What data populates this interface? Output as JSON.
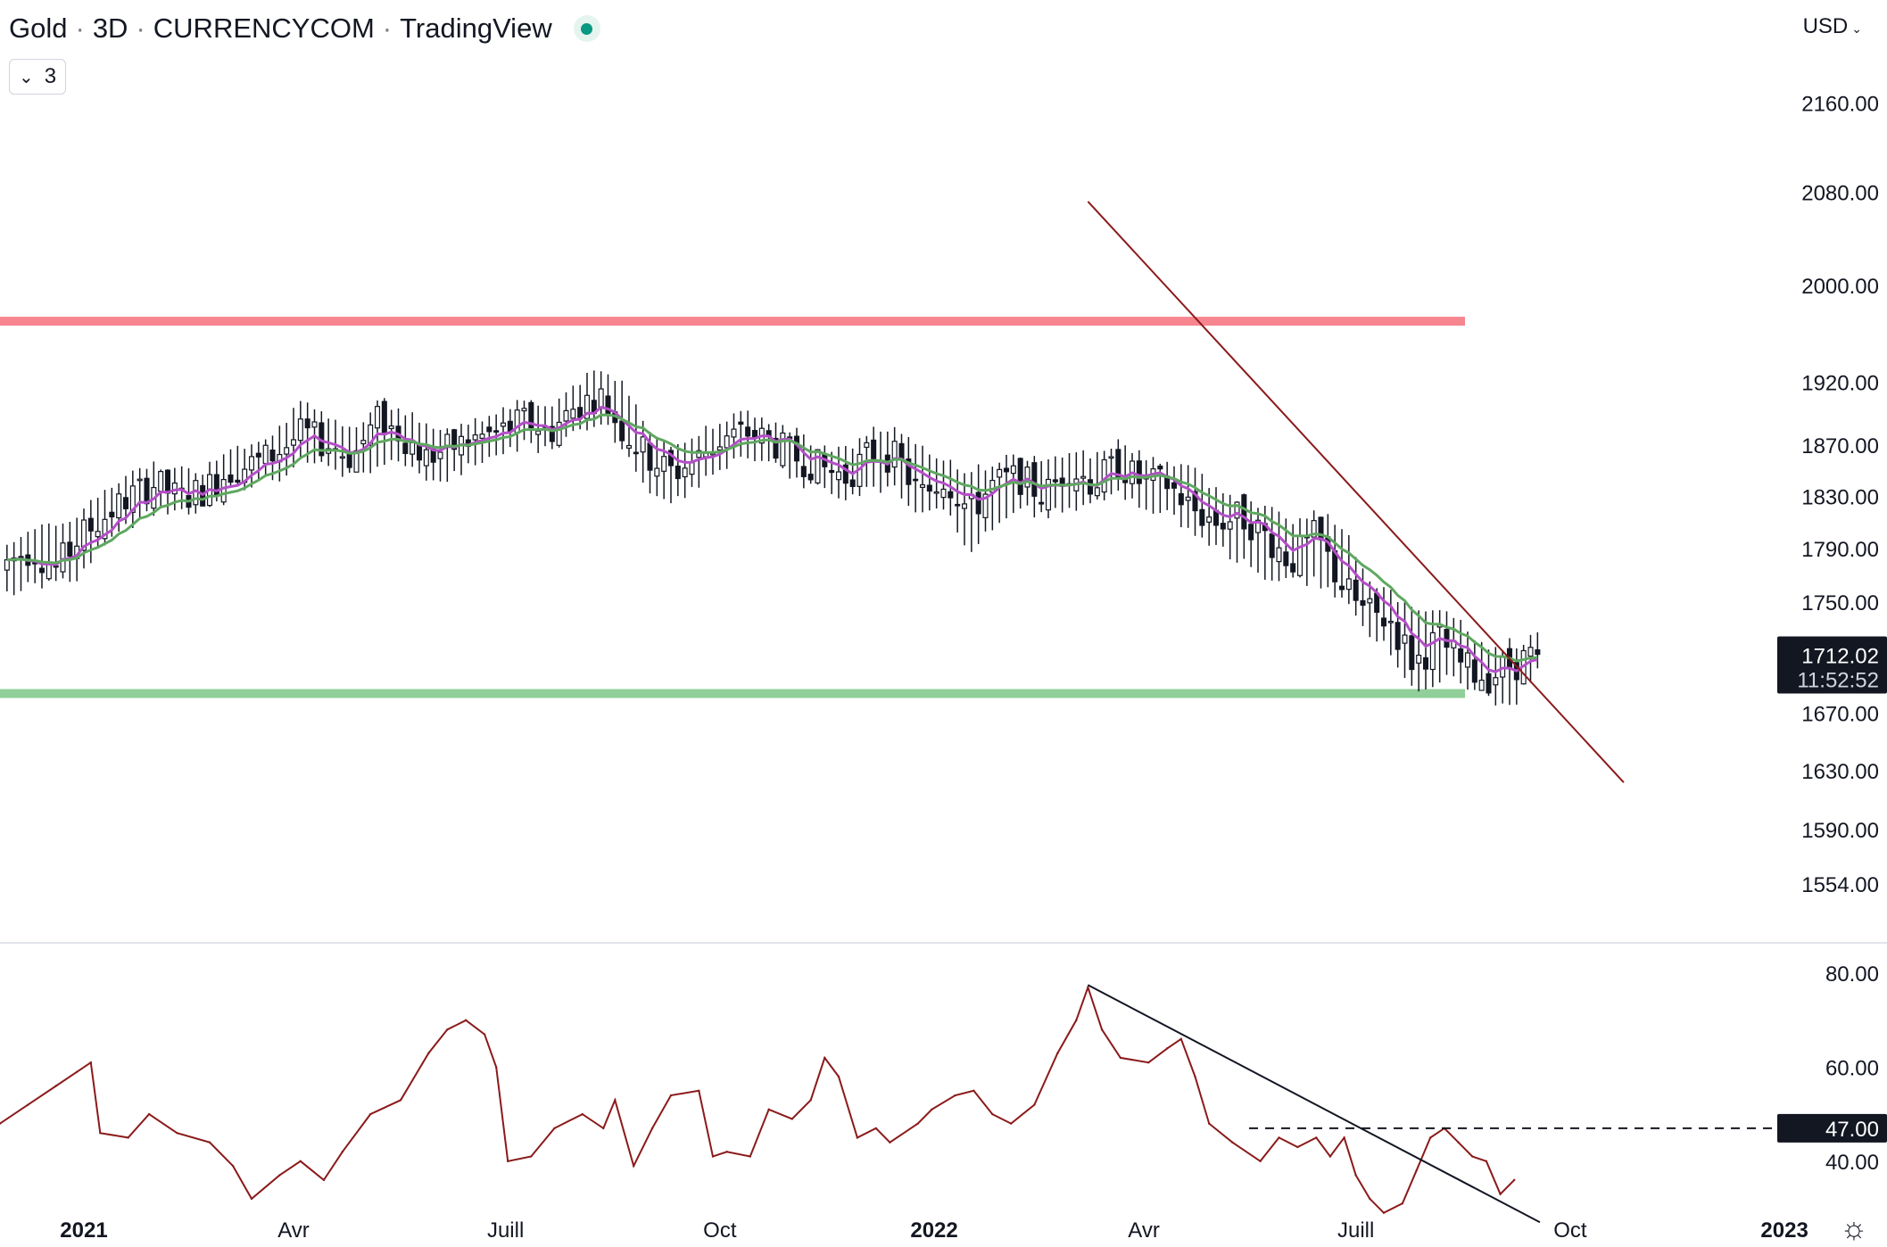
{
  "header": {
    "symbol": "Gold",
    "interval": "3D",
    "exchange": "CURRENCYCOM",
    "source": "TradingView",
    "indicator_count": "3",
    "currency": "USD"
  },
  "price_label": {
    "value": "1712.02",
    "countdown": "11:52:52"
  },
  "rsi_label": {
    "value": "47.00"
  },
  "chart_data": [
    {
      "type": "candlestick",
      "title": "",
      "y_axis_ticks": [
        "2160.00",
        "2080.00",
        "2000.00",
        "1920.00",
        "1870.00",
        "1830.00",
        "1790.00",
        "1750.00",
        "1670.00",
        "1630.00",
        "1590.00",
        "1554.00"
      ],
      "y_tick_values": [
        2160,
        2080,
        2000,
        1920,
        1870,
        1830,
        1790,
        1750,
        1670,
        1630,
        1590,
        1554
      ],
      "x_axis_ticks": [
        {
          "label": "2021",
          "date": "2021-01-01",
          "bold": true
        },
        {
          "label": "Avr",
          "date": "2021-04-01",
          "bold": false
        },
        {
          "label": "Juill",
          "date": "2021-07-01",
          "bold": false
        },
        {
          "label": "Oct",
          "date": "2021-10-01",
          "bold": false
        },
        {
          "label": "2022",
          "date": "2022-01-01",
          "bold": true
        },
        {
          "label": "Avr",
          "date": "2022-04-01",
          "bold": false
        },
        {
          "label": "Juill",
          "date": "2022-07-01",
          "bold": false
        },
        {
          "label": "Oct",
          "date": "2022-10-01",
          "bold": false
        },
        {
          "label": "2023",
          "date": "2023-01-01",
          "bold": true
        }
      ],
      "x_range": [
        "2020-11-26",
        "2023-02-14"
      ],
      "y_scale": "log",
      "last_price": 1712.02,
      "resistance_level": 1970,
      "support_level": 1684,
      "resistance_color": "#f7858f",
      "support_color": "#90cf9a",
      "trendline": {
        "points": [
          {
            "date": "2022-03-08",
            "value": 2072
          },
          {
            "date": "2022-10-24",
            "value": 1622
          }
        ],
        "color": "#8b1a1a"
      },
      "moving_averages": [
        {
          "color": "#b44fc8",
          "period": "short"
        },
        {
          "color": "#5fa860",
          "period": "long"
        }
      ],
      "candle_dates_start": "2020-11-29",
      "candle_step_days": 3,
      "closes": [
        1780,
        1790,
        1775,
        1800,
        1815,
        1830,
        1840,
        1828,
        1835,
        1850,
        1855,
        1865,
        1880,
        1870,
        1860,
        1890,
        1878,
        1860,
        1868,
        1875,
        1880,
        1890,
        1880,
        1900,
        1910,
        1880,
        1860,
        1848,
        1860,
        1875,
        1880,
        1872,
        1860,
        1852,
        1845,
        1865,
        1860,
        1830,
        1845,
        1818,
        1840,
        1845,
        1830,
        1852,
        1840,
        1855,
        1840,
        1840,
        1820,
        1810,
        1815,
        1800,
        1780,
        1800,
        1765,
        1742,
        1738,
        1705,
        1724,
        1702,
        1696,
        1705,
        1712
      ],
      "highs": [
        1792,
        1800,
        1802,
        1815,
        1830,
        1842,
        1852,
        1846,
        1846,
        1865,
        1868,
        1880,
        1900,
        1885,
        1878,
        1900,
        1895,
        1880,
        1880,
        1885,
        1895,
        1902,
        1895,
        1915,
        1925,
        1915,
        1880,
        1862,
        1875,
        1888,
        1890,
        1885,
        1875,
        1865,
        1862,
        1878,
        1878,
        1862,
        1855,
        1845,
        1852,
        1858,
        1850,
        1862,
        1858,
        1868,
        1858,
        1852,
        1848,
        1830,
        1825,
        1818,
        1808,
        1812,
        1806,
        1768,
        1752,
        1744,
        1738,
        1730,
        1710,
        1715,
        1722
      ],
      "lows": [
        1760,
        1768,
        1768,
        1774,
        1800,
        1812,
        1826,
        1822,
        1824,
        1836,
        1845,
        1848,
        1864,
        1860,
        1848,
        1856,
        1862,
        1842,
        1850,
        1860,
        1866,
        1875,
        1868,
        1882,
        1895,
        1870,
        1835,
        1830,
        1842,
        1856,
        1865,
        1860,
        1845,
        1838,
        1832,
        1840,
        1840,
        1818,
        1824,
        1790,
        1812,
        1826,
        1818,
        1826,
        1826,
        1835,
        1826,
        1822,
        1804,
        1796,
        1784,
        1770,
        1770,
        1770,
        1758,
        1732,
        1720,
        1690,
        1698,
        1696,
        1684,
        1680,
        1704
      ]
    },
    {
      "type": "line",
      "title": "",
      "y_axis_ticks": [
        "80.00",
        "60.00",
        "40.00"
      ],
      "y_tick_values": [
        80,
        60,
        40
      ],
      "y_range": [
        28,
        84
      ],
      "x_range": [
        "2020-11-26",
        "2023-02-14"
      ],
      "last_value": 47.0,
      "series_color": "#8b1a1a",
      "reference_level": 47.0,
      "trendline": {
        "points": [
          {
            "date": "2022-03-08",
            "value": 77.5
          },
          {
            "date": "2022-09-18",
            "value": 27
          }
        ],
        "color": "#131722"
      },
      "series": [
        {
          "x": "2020-11-26",
          "y": 48
        },
        {
          "x": "2020-12-08",
          "y": 52
        },
        {
          "x": "2020-12-20",
          "y": 56
        },
        {
          "x": "2020-12-29",
          "y": 59
        },
        {
          "x": "2021-01-04",
          "y": 61
        },
        {
          "x": "2021-01-08",
          "y": 46
        },
        {
          "x": "2021-01-20",
          "y": 45
        },
        {
          "x": "2021-01-29",
          "y": 50
        },
        {
          "x": "2021-02-10",
          "y": 46
        },
        {
          "x": "2021-02-24",
          "y": 44
        },
        {
          "x": "2021-03-06",
          "y": 39
        },
        {
          "x": "2021-03-14",
          "y": 32
        },
        {
          "x": "2021-03-26",
          "y": 37
        },
        {
          "x": "2021-04-04",
          "y": 40
        },
        {
          "x": "2021-04-14",
          "y": 36
        },
        {
          "x": "2021-04-22",
          "y": 42
        },
        {
          "x": "2021-05-04",
          "y": 50
        },
        {
          "x": "2021-05-17",
          "y": 53
        },
        {
          "x": "2021-05-29",
          "y": 63
        },
        {
          "x": "2021-06-06",
          "y": 68
        },
        {
          "x": "2021-06-14",
          "y": 70
        },
        {
          "x": "2021-06-22",
          "y": 67
        },
        {
          "x": "2021-06-27",
          "y": 60
        },
        {
          "x": "2021-07-02",
          "y": 40
        },
        {
          "x": "2021-07-12",
          "y": 41
        },
        {
          "x": "2021-07-22",
          "y": 47
        },
        {
          "x": "2021-08-03",
          "y": 50
        },
        {
          "x": "2021-08-12",
          "y": 47
        },
        {
          "x": "2021-08-17",
          "y": 53
        },
        {
          "x": "2021-08-25",
          "y": 39
        },
        {
          "x": "2021-09-02",
          "y": 47
        },
        {
          "x": "2021-09-10",
          "y": 54
        },
        {
          "x": "2021-09-22",
          "y": 55
        },
        {
          "x": "2021-09-28",
          "y": 41
        },
        {
          "x": "2021-10-04",
          "y": 42
        },
        {
          "x": "2021-10-14",
          "y": 41
        },
        {
          "x": "2021-10-22",
          "y": 51
        },
        {
          "x": "2021-11-01",
          "y": 49
        },
        {
          "x": "2021-11-09",
          "y": 53
        },
        {
          "x": "2021-11-15",
          "y": 62
        },
        {
          "x": "2021-11-21",
          "y": 58
        },
        {
          "x": "2021-11-29",
          "y": 45
        },
        {
          "x": "2021-12-07",
          "y": 47
        },
        {
          "x": "2021-12-13",
          "y": 44
        },
        {
          "x": "2021-12-25",
          "y": 48
        },
        {
          "x": "2021-12-31",
          "y": 51
        },
        {
          "x": "2022-01-10",
          "y": 54
        },
        {
          "x": "2022-01-18",
          "y": 55
        },
        {
          "x": "2022-01-26",
          "y": 50
        },
        {
          "x": "2022-02-03",
          "y": 48
        },
        {
          "x": "2022-02-13",
          "y": 52
        },
        {
          "x": "2022-02-23",
          "y": 63
        },
        {
          "x": "2022-03-03",
          "y": 70
        },
        {
          "x": "2022-03-08",
          "y": 77
        },
        {
          "x": "2022-03-14",
          "y": 68
        },
        {
          "x": "2022-03-22",
          "y": 62
        },
        {
          "x": "2022-04-03",
          "y": 61
        },
        {
          "x": "2022-04-11",
          "y": 64
        },
        {
          "x": "2022-04-17",
          "y": 66
        },
        {
          "x": "2022-04-23",
          "y": 58
        },
        {
          "x": "2022-04-29",
          "y": 48
        },
        {
          "x": "2022-05-09",
          "y": 44
        },
        {
          "x": "2022-05-21",
          "y": 40
        },
        {
          "x": "2022-05-29",
          "y": 45
        },
        {
          "x": "2022-06-06",
          "y": 43
        },
        {
          "x": "2022-06-14",
          "y": 45
        },
        {
          "x": "2022-06-20",
          "y": 41
        },
        {
          "x": "2022-06-26",
          "y": 45
        },
        {
          "x": "2022-07-01",
          "y": 37
        },
        {
          "x": "2022-07-07",
          "y": 32
        },
        {
          "x": "2022-07-13",
          "y": 29
        },
        {
          "x": "2022-07-21",
          "y": 31
        },
        {
          "x": "2022-07-27",
          "y": 38
        },
        {
          "x": "2022-08-02",
          "y": 45
        },
        {
          "x": "2022-08-08",
          "y": 47
        },
        {
          "x": "2022-08-14",
          "y": 44
        },
        {
          "x": "2022-08-20",
          "y": 41
        },
        {
          "x": "2022-08-26",
          "y": 40
        },
        {
          "x": "2022-09-01",
          "y": 33
        },
        {
          "x": "2022-09-07",
          "y": 36
        }
      ]
    }
  ]
}
